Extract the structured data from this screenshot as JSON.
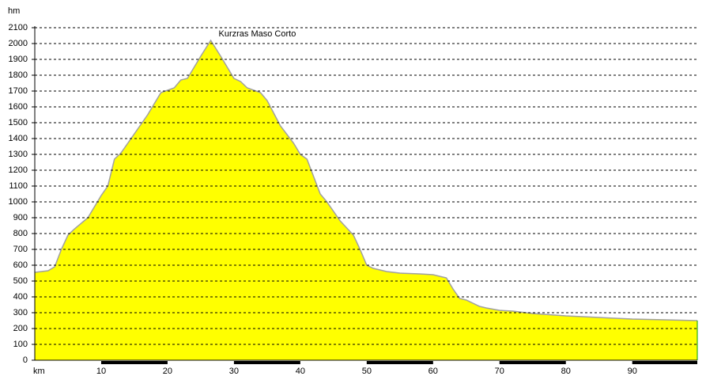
{
  "chart_data": {
    "type": "area",
    "annotation": "Kurzras Maso Corto",
    "x_label": "km",
    "y_label": "hm",
    "x": [
      0,
      2,
      3,
      4,
      5,
      6,
      8,
      10,
      11,
      12,
      13,
      15,
      17,
      19,
      21,
      22,
      23,
      25,
      26.5,
      28,
      30,
      31,
      32,
      34,
      35,
      37,
      39,
      40,
      41,
      43,
      44,
      46,
      48,
      49,
      50,
      51,
      53,
      55,
      58,
      60,
      62,
      63,
      64,
      65,
      67,
      68,
      70,
      72,
      75,
      80,
      85,
      90,
      95,
      99.8
    ],
    "values": [
      555,
      565,
      590,
      700,
      790,
      830,
      900,
      1040,
      1100,
      1270,
      1310,
      1430,
      1550,
      1690,
      1720,
      1770,
      1780,
      1920,
      2020,
      1920,
      1780,
      1760,
      1720,
      1690,
      1640,
      1480,
      1370,
      1300,
      1270,
      1050,
      1000,
      880,
      790,
      700,
      600,
      580,
      560,
      550,
      545,
      540,
      520,
      450,
      390,
      380,
      340,
      330,
      315,
      310,
      295,
      280,
      270,
      260,
      255,
      250
    ],
    "color": "#ffff00",
    "line_color": "#a0a0a0",
    "xlim": [
      0,
      99.8
    ],
    "xticks": [
      10,
      20,
      30,
      40,
      50,
      60,
      70,
      80,
      90
    ],
    "ylim": [
      0,
      2100
    ],
    "yticks": [
      0,
      100,
      200,
      300,
      400,
      500,
      600,
      700,
      800,
      900,
      1000,
      1100,
      1200,
      1300,
      1400,
      1500,
      1600,
      1700,
      1800,
      1900,
      2000,
      2100
    ],
    "grid": true
  }
}
